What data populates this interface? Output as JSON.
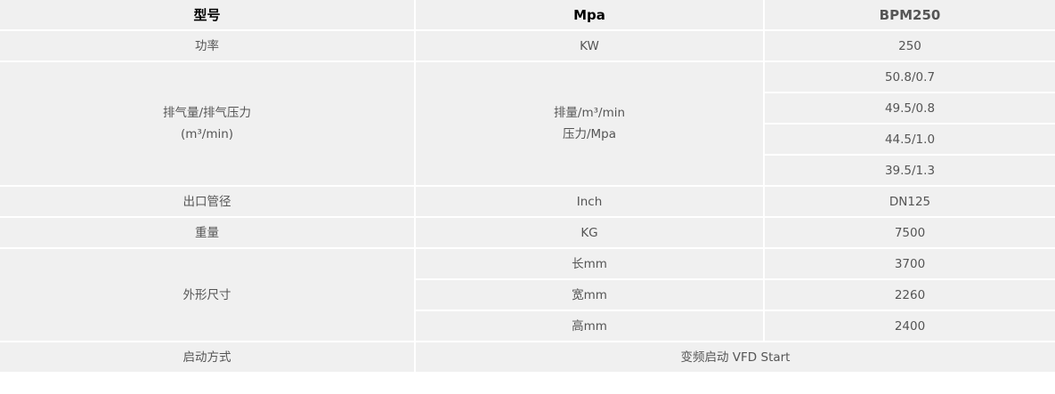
{
  "header": {
    "col1": "型号",
    "col2": "Mpa",
    "col3": "BPM250"
  },
  "power": {
    "label": "功率",
    "unit": "KW",
    "value": "250"
  },
  "flow": {
    "label_line1": "排气量/排气压力",
    "label_line2": "(m³/min)",
    "unit_line1": "排量/m³/min",
    "unit_line2": "压力/Mpa",
    "values": [
      "50.8/0.7",
      "49.5/0.8",
      "44.5/1.0",
      "39.5/1.3"
    ]
  },
  "outlet": {
    "label": "出口管径",
    "unit": "Inch",
    "value": "DN125"
  },
  "weight": {
    "label": "重量",
    "unit": "KG",
    "value": "7500"
  },
  "dimensions": {
    "label": "外形尺寸",
    "rows": [
      {
        "unit": "长mm",
        "value": "3700"
      },
      {
        "unit": "宽mm",
        "value": "2260"
      },
      {
        "unit": "高mm",
        "value": "2400"
      }
    ]
  },
  "start": {
    "label": "启动方式",
    "value": "变频启动 VFD Start"
  }
}
